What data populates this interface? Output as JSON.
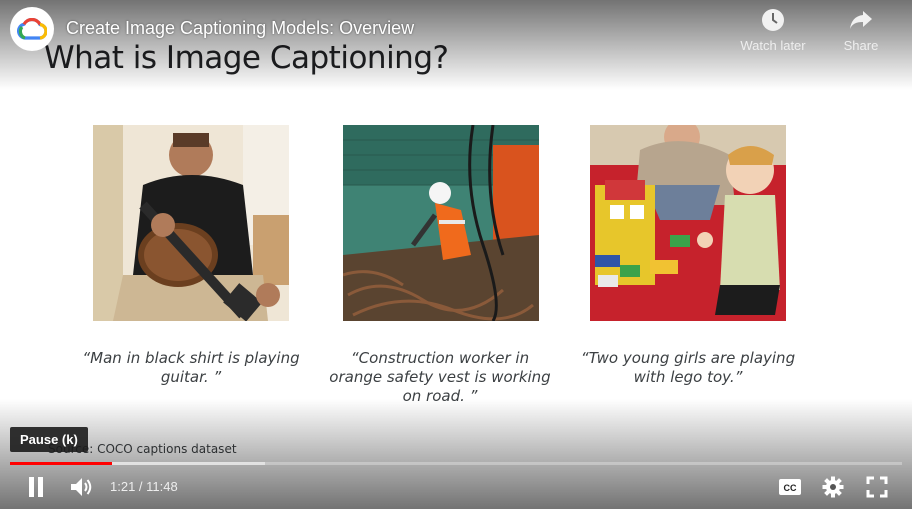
{
  "video": {
    "title": "Create Image Captioning Models: Overview",
    "logo_icon": "google-cloud-logo-icon"
  },
  "top_actions": [
    {
      "label": "Watch later",
      "icon": "clock-icon"
    },
    {
      "label": "Share",
      "icon": "share-arrow-icon"
    }
  ],
  "slide": {
    "title": "What is Image Captioning?",
    "captions": [
      "“Man in black shirt is playing guitar. ”",
      "“Construction worker in orange safety vest is working on road.  ”",
      "“Two young girls are playing with lego toy.”"
    ],
    "source": "Source: COCO captions dataset"
  },
  "player": {
    "time_current": "1:21",
    "time_separator": " / ",
    "time_total": "11:48",
    "played_fraction": 0.114,
    "buffered_fraction": 0.286,
    "tooltip": "Pause (k)",
    "accent_color": "#ff0000"
  }
}
